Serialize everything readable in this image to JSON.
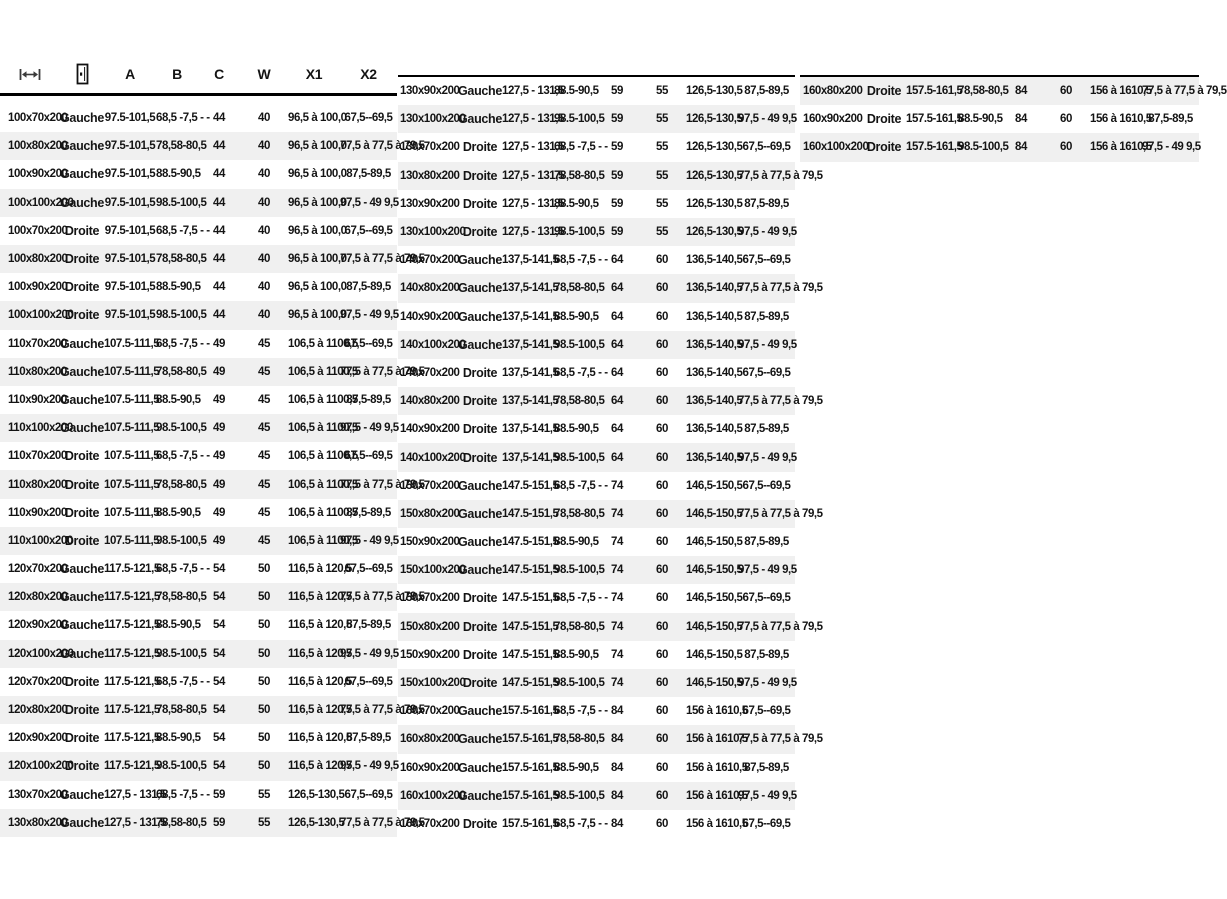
{
  "page": {
    "background_color": "#ffffff",
    "text_color": "#141414",
    "stripe_color": "#f0f0f0",
    "border_color": "#000000"
  },
  "icons": {
    "width_icon": "width-dimension-icon",
    "door_icon": "door-icon"
  },
  "header": {
    "labels": [
      "A",
      "B",
      "C",
      "W",
      "X1",
      "X2"
    ]
  },
  "columns_keys": [
    "size",
    "side",
    "a",
    "b",
    "c",
    "w",
    "x1",
    "x2"
  ],
  "rows_left": [
    {
      "size": "100x70x200",
      "side": "Gauche",
      "a": "97.5-101,5",
      "b": "68,5 -7,5 - -",
      "c": "44",
      "w": "40",
      "x1": "96,5 à 100,0",
      "x2": "67,5--69,5"
    },
    {
      "size": "100x80x200",
      "side": "Gauche",
      "a": "97.5-101,5",
      "b": "78,58-80,5",
      "c": "44",
      "w": "40",
      "x1": "96,5 à 100,0",
      "x2": "77,5 à 77,5 à 79,5"
    },
    {
      "size": "100x90x200",
      "side": "Gauche",
      "a": "97.5-101,5",
      "b": "88.5-90,5",
      "c": "44",
      "w": "40",
      "x1": "96,5 à 100,0",
      "x2": "87,5-89,5"
    },
    {
      "size": "100x100x200",
      "side": "Gauche",
      "a": "97.5-101,5",
      "b": "98.5-100,5",
      "c": "44",
      "w": "40",
      "x1": "96,5 à 100,0",
      "x2": "97,5 - 49 9,5"
    },
    {
      "size": "100x70x200",
      "side": "Droite",
      "a": "97.5-101,5",
      "b": "68,5 -7,5 - -",
      "c": "44",
      "w": "40",
      "x1": "96,5 à 100,0",
      "x2": "67,5--69,5"
    },
    {
      "size": "100x80x200",
      "side": "Droite",
      "a": "97.5-101,5",
      "b": "78,58-80,5",
      "c": "44",
      "w": "40",
      "x1": "96,5 à 100,0",
      "x2": "77,5 à 77,5 à 79,5"
    },
    {
      "size": "100x90x200",
      "side": "Droite",
      "a": "97.5-101,5",
      "b": "88.5-90,5",
      "c": "44",
      "w": "40",
      "x1": "96,5 à 100,0",
      "x2": "87,5-89,5"
    },
    {
      "size": "100x100x200",
      "side": "Droite",
      "a": "97.5-101,5",
      "b": "98.5-100,5",
      "c": "44",
      "w": "40",
      "x1": "96,5 à 100,0",
      "x2": "97,5 - 49 9,5"
    },
    {
      "size": "110x70x200",
      "side": "Gauche",
      "a": "107.5-111,5",
      "b": "68,5 -7,5 - -",
      "c": "49",
      "w": "45",
      "x1": "106,5 à 1100,5",
      "x2": "67,5--69,5"
    },
    {
      "size": "110x80x200",
      "side": "Gauche",
      "a": "107.5-111,5",
      "b": "78,58-80,5",
      "c": "49",
      "w": "45",
      "x1": "106,5 à 1100,5",
      "x2": "77,5 à 77,5 à 79,5"
    },
    {
      "size": "110x90x200",
      "side": "Gauche",
      "a": "107.5-111,5",
      "b": "88.5-90,5",
      "c": "49",
      "w": "45",
      "x1": "106,5 à 1100,5",
      "x2": "87,5-89,5"
    },
    {
      "size": "110x100x200",
      "side": "Gauche",
      "a": "107.5-111,5",
      "b": "98.5-100,5",
      "c": "49",
      "w": "45",
      "x1": "106,5 à 1100,5",
      "x2": "97,5 - 49 9,5"
    },
    {
      "size": "110x70x200",
      "side": "Droite",
      "a": "107.5-111,5",
      "b": "68,5 -7,5 - -",
      "c": "49",
      "w": "45",
      "x1": "106,5 à 1100,5",
      "x2": "67,5--69,5"
    },
    {
      "size": "110x80x200",
      "side": "Droite",
      "a": "107.5-111,5",
      "b": "78,58-80,5",
      "c": "49",
      "w": "45",
      "x1": "106,5 à 1100,5",
      "x2": "77,5 à 77,5 à 79,5"
    },
    {
      "size": "110x90x200",
      "side": "Droite",
      "a": "107.5-111,5",
      "b": "88.5-90,5",
      "c": "49",
      "w": "45",
      "x1": "106,5 à 1100,5",
      "x2": "87,5-89,5"
    },
    {
      "size": "110x100x200",
      "side": "Droite",
      "a": "107.5-111,5",
      "b": "98.5-100,5",
      "c": "49",
      "w": "45",
      "x1": "106,5 à 1100,5",
      "x2": "97,5 - 49 9,5"
    },
    {
      "size": "120x70x200",
      "side": "Gauche",
      "a": "117.5-121,5",
      "b": "68,5 -7,5 - -",
      "c": "54",
      "w": "50",
      "x1": "116,5 à 120,5",
      "x2": "67,5--69,5"
    },
    {
      "size": "120x80x200",
      "side": "Gauche",
      "a": "117.5-121,5",
      "b": "78,58-80,5",
      "c": "54",
      "w": "50",
      "x1": "116,5 à 120,5",
      "x2": "77,5 à 77,5 à 79,5"
    },
    {
      "size": "120x90x200",
      "side": "Gauche",
      "a": "117.5-121,5",
      "b": "88.5-90,5",
      "c": "54",
      "w": "50",
      "x1": "116,5 à 120,5",
      "x2": "87,5-89,5"
    },
    {
      "size": "120x100x200",
      "side": "Gauche",
      "a": "117.5-121,5",
      "b": "98.5-100,5",
      "c": "54",
      "w": "50",
      "x1": "116,5 à 120,5",
      "x2": "97,5 - 49 9,5"
    },
    {
      "size": "120x70x200",
      "side": "Droite",
      "a": "117.5-121,5",
      "b": "68,5 -7,5 - -",
      "c": "54",
      "w": "50",
      "x1": "116,5 à 120,5",
      "x2": "67,5--69,5"
    },
    {
      "size": "120x80x200",
      "side": "Droite",
      "a": "117.5-121,5",
      "b": "78,58-80,5",
      "c": "54",
      "w": "50",
      "x1": "116,5 à 120,5",
      "x2": "77,5 à 77,5 à 79,5"
    },
    {
      "size": "120x90x200",
      "side": "Droite",
      "a": "117.5-121,5",
      "b": "88.5-90,5",
      "c": "54",
      "w": "50",
      "x1": "116,5 à 120,5",
      "x2": "87,5-89,5"
    },
    {
      "size": "120x100x200",
      "side": "Droite",
      "a": "117.5-121,5",
      "b": "98.5-100,5",
      "c": "54",
      "w": "50",
      "x1": "116,5 à 120,5",
      "x2": "97,5 - 49 9,5"
    },
    {
      "size": "130x70x200",
      "side": "Gauche",
      "a": "127,5 - 131,5",
      "b": "68,5 -7,5 - -",
      "c": "59",
      "w": "55",
      "x1": "126,5-130,5",
      "x2": "67,5--69,5"
    },
    {
      "size": "130x80x200",
      "side": "Gauche",
      "a": "127,5 - 131,5",
      "b": "78,58-80,5",
      "c": "59",
      "w": "55",
      "x1": "126,5-130,5",
      "x2": "77,5 à 77,5 à 79,5"
    }
  ],
  "rows_middle": [
    {
      "size": "130x90x200",
      "side": "Gauche",
      "a": "127,5 - 131,5",
      "b": "88.5-90,5",
      "c": "59",
      "w": "55",
      "x1": "126,5-130,5",
      "x2": "87,5-89,5"
    },
    {
      "size": "130x100x200",
      "side": "Gauche",
      "a": "127,5 - 131,5",
      "b": "98.5-100,5",
      "c": "59",
      "w": "55",
      "x1": "126,5-130,5",
      "x2": "97,5 - 49 9,5"
    },
    {
      "size": "130x70x200",
      "side": "Droite",
      "a": "127,5 - 131,5",
      "b": "68,5 -7,5 - -",
      "c": "59",
      "w": "55",
      "x1": "126,5-130,5",
      "x2": "67,5--69,5"
    },
    {
      "size": "130x80x200",
      "side": "Droite",
      "a": "127,5 - 131,5",
      "b": "78,58-80,5",
      "c": "59",
      "w": "55",
      "x1": "126,5-130,5",
      "x2": "77,5 à 77,5 à 79,5"
    },
    {
      "size": "130x90x200",
      "side": "Droite",
      "a": "127,5 - 131,5",
      "b": "88.5-90,5",
      "c": "59",
      "w": "55",
      "x1": "126,5-130,5",
      "x2": "87,5-89,5"
    },
    {
      "size": "130x100x200",
      "side": "Droite",
      "a": "127,5 - 131,5",
      "b": "98.5-100,5",
      "c": "59",
      "w": "55",
      "x1": "126,5-130,5",
      "x2": "97,5 - 49 9,5"
    },
    {
      "size": "140x70x200",
      "side": "Gauche",
      "a": "137,5-141,5",
      "b": "68,5 -7,5 - -",
      "c": "64",
      "w": "60",
      "x1": "136,5-140,5",
      "x2": "67,5--69,5"
    },
    {
      "size": "140x80x200",
      "side": "Gauche",
      "a": "137,5-141,5",
      "b": "78,58-80,5",
      "c": "64",
      "w": "60",
      "x1": "136,5-140,5",
      "x2": "77,5 à 77,5 à 79,5"
    },
    {
      "size": "140x90x200",
      "side": "Gauche",
      "a": "137,5-141,5",
      "b": "88.5-90,5",
      "c": "64",
      "w": "60",
      "x1": "136,5-140,5",
      "x2": "87,5-89,5"
    },
    {
      "size": "140x100x200",
      "side": "Gauche",
      "a": "137,5-141,5",
      "b": "98.5-100,5",
      "c": "64",
      "w": "60",
      "x1": "136,5-140,5",
      "x2": "97,5 - 49 9,5"
    },
    {
      "size": "140x70x200",
      "side": "Droite",
      "a": "137,5-141,5",
      "b": "68,5 -7,5 - -",
      "c": "64",
      "w": "60",
      "x1": "136,5-140,5",
      "x2": "67,5--69,5"
    },
    {
      "size": "140x80x200",
      "side": "Droite",
      "a": "137,5-141,5",
      "b": "78,58-80,5",
      "c": "64",
      "w": "60",
      "x1": "136,5-140,5",
      "x2": "77,5 à 77,5 à 79,5"
    },
    {
      "size": "140x90x200",
      "side": "Droite",
      "a": "137,5-141,5",
      "b": "88.5-90,5",
      "c": "64",
      "w": "60",
      "x1": "136,5-140,5",
      "x2": "87,5-89,5"
    },
    {
      "size": "140x100x200",
      "side": "Droite",
      "a": "137,5-141,5",
      "b": "98.5-100,5",
      "c": "64",
      "w": "60",
      "x1": "136,5-140,5",
      "x2": "97,5 - 49 9,5"
    },
    {
      "size": "150x70x200",
      "side": "Gauche",
      "a": "147.5-151,5",
      "b": "68,5 -7,5 - -",
      "c": "74",
      "w": "60",
      "x1": "146,5-150,5",
      "x2": "67,5--69,5"
    },
    {
      "size": "150x80x200",
      "side": "Gauche",
      "a": "147.5-151,5",
      "b": "78,58-80,5",
      "c": "74",
      "w": "60",
      "x1": "146,5-150,5",
      "x2": "77,5 à 77,5 à 79,5"
    },
    {
      "size": "150x90x200",
      "side": "Gauche",
      "a": "147.5-151,5",
      "b": "88.5-90,5",
      "c": "74",
      "w": "60",
      "x1": "146,5-150,5",
      "x2": "87,5-89,5"
    },
    {
      "size": "150x100x200",
      "side": "Gauche",
      "a": "147.5-151,5",
      "b": "98.5-100,5",
      "c": "74",
      "w": "60",
      "x1": "146,5-150,5",
      "x2": "97,5 - 49 9,5"
    },
    {
      "size": "150x70x200",
      "side": "Droite",
      "a": "147.5-151,5",
      "b": "68,5 -7,5 - -",
      "c": "74",
      "w": "60",
      "x1": "146,5-150,5",
      "x2": "67,5--69,5"
    },
    {
      "size": "150x80x200",
      "side": "Droite",
      "a": "147.5-151,5",
      "b": "78,58-80,5",
      "c": "74",
      "w": "60",
      "x1": "146,5-150,5",
      "x2": "77,5 à 77,5 à 79,5"
    },
    {
      "size": "150x90x200",
      "side": "Droite",
      "a": "147.5-151,5",
      "b": "88.5-90,5",
      "c": "74",
      "w": "60",
      "x1": "146,5-150,5",
      "x2": "87,5-89,5"
    },
    {
      "size": "150x100x200",
      "side": "Droite",
      "a": "147.5-151,5",
      "b": "98.5-100,5",
      "c": "74",
      "w": "60",
      "x1": "146,5-150,5",
      "x2": "97,5 - 49 9,5"
    },
    {
      "size": "160x70x200",
      "side": "Gauche",
      "a": "157.5-161,5",
      "b": "68,5 -7,5 - -",
      "c": "84",
      "w": "60",
      "x1": "156 à 1610,5",
      "x2": "67,5--69,5"
    },
    {
      "size": "160x80x200",
      "side": "Gauche",
      "a": "157.5-161,5",
      "b": "78,58-80,5",
      "c": "84",
      "w": "60",
      "x1": "156 à 1610,5",
      "x2": "77,5 à 77,5 à 79,5"
    },
    {
      "size": "160x90x200",
      "side": "Gauche",
      "a": "157.5-161,5",
      "b": "88.5-90,5",
      "c": "84",
      "w": "60",
      "x1": "156 à 1610,5",
      "x2": "87,5-89,5"
    },
    {
      "size": "160x100x200",
      "side": "Gauche",
      "a": "157.5-161,5",
      "b": "98.5-100,5",
      "c": "84",
      "w": "60",
      "x1": "156 à 1610,5",
      "x2": "97,5 - 49 9,5"
    },
    {
      "size": "160x70x200",
      "side": "Droite",
      "a": "157.5-161,5",
      "b": "68,5 -7,5 - -",
      "c": "84",
      "w": "60",
      "x1": "156 à 1610,5",
      "x2": "67,5--69,5"
    }
  ],
  "rows_right": [
    {
      "size": "160x80x200",
      "side": "Droite",
      "a": "157.5-161,5",
      "b": "78,58-80,5",
      "c": "84",
      "w": "60",
      "x1": "156 à 1610,5",
      "x2": "77,5 à 77,5 à 79,5"
    },
    {
      "size": "160x90x200",
      "side": "Droite",
      "a": "157.5-161,5",
      "b": "88.5-90,5",
      "c": "84",
      "w": "60",
      "x1": "156 à 1610,5",
      "x2": "87,5-89,5"
    },
    {
      "size": "160x100x200",
      "side": "Droite",
      "a": "157.5-161,5",
      "b": "98.5-100,5",
      "c": "84",
      "w": "60",
      "x1": "156 à 1610,5",
      "x2": "97,5 - 49 9,5"
    }
  ]
}
